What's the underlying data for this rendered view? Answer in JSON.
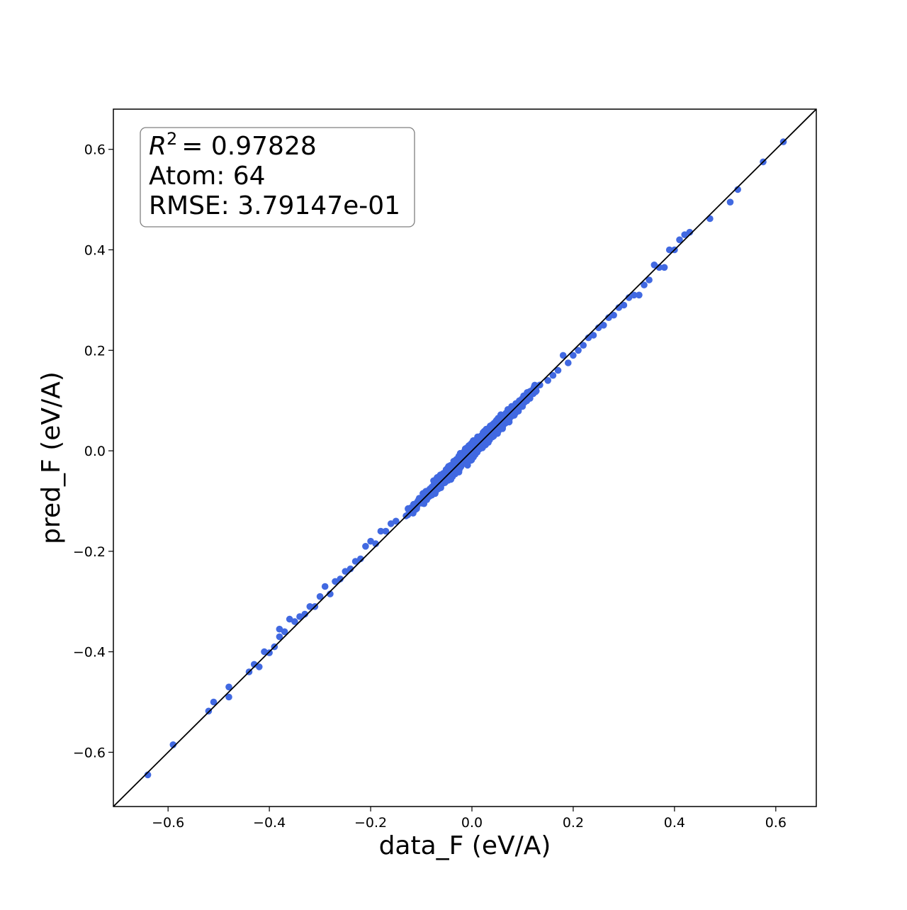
{
  "chart_data": {
    "type": "scatter",
    "title": "",
    "xlabel": "data_F (eV/A)",
    "ylabel": "pred_F (eV/A)",
    "xlim": [
      -0.708,
      0.68
    ],
    "ylim": [
      -0.708,
      0.68
    ],
    "xticks": [
      -0.6,
      -0.4,
      -0.2,
      0.0,
      0.2,
      0.4,
      0.6
    ],
    "yticks": [
      -0.6,
      -0.4,
      -0.2,
      0.0,
      0.2,
      0.4,
      0.6
    ],
    "xtick_labels": [
      "−0.6",
      "−0.4",
      "−0.2",
      "0.0",
      "0.2",
      "0.4",
      "0.6"
    ],
    "ytick_labels": [
      "−0.6",
      "−0.4",
      "−0.2",
      "0.0",
      "0.2",
      "0.4",
      "0.6"
    ],
    "grid": false,
    "marker_color": "#4169e1",
    "reference_line": {
      "type": "identity",
      "color": "#000000"
    },
    "annotation": {
      "r2_symbol": "R",
      "r2_exponent": "2",
      "r2_value": "= 0.97828",
      "atom_line": "Atom: 64",
      "rmse_line": "RMSE: 3.79147e-01",
      "placement": "top-left"
    },
    "series": [
      {
        "points": [
          [
            -0.64,
            -0.645
          ],
          [
            -0.59,
            -0.585
          ],
          [
            -0.52,
            -0.518
          ],
          [
            -0.51,
            -0.5
          ],
          [
            -0.48,
            -0.49
          ],
          [
            -0.48,
            -0.47
          ],
          [
            -0.44,
            -0.44
          ],
          [
            -0.43,
            -0.425
          ],
          [
            -0.42,
            -0.43
          ],
          [
            -0.41,
            -0.4
          ],
          [
            -0.4,
            -0.402
          ],
          [
            -0.39,
            -0.39
          ],
          [
            -0.38,
            -0.37
          ],
          [
            -0.38,
            -0.355
          ],
          [
            -0.37,
            -0.36
          ],
          [
            -0.36,
            -0.335
          ],
          [
            -0.35,
            -0.34
          ],
          [
            -0.34,
            -0.33
          ],
          [
            -0.33,
            -0.325
          ],
          [
            -0.32,
            -0.31
          ],
          [
            -0.31,
            -0.31
          ],
          [
            -0.3,
            -0.29
          ],
          [
            -0.29,
            -0.27
          ],
          [
            -0.28,
            -0.285
          ],
          [
            -0.27,
            -0.26
          ],
          [
            -0.26,
            -0.255
          ],
          [
            -0.25,
            -0.24
          ],
          [
            -0.24,
            -0.235
          ],
          [
            -0.23,
            -0.22
          ],
          [
            -0.22,
            -0.215
          ],
          [
            -0.21,
            -0.19
          ],
          [
            -0.2,
            -0.18
          ],
          [
            -0.19,
            -0.185
          ],
          [
            -0.18,
            -0.16
          ],
          [
            -0.17,
            -0.16
          ],
          [
            -0.16,
            -0.145
          ],
          [
            -0.15,
            -0.14
          ],
          [
            0.15,
            0.14
          ],
          [
            0.16,
            0.15
          ],
          [
            0.17,
            0.16
          ],
          [
            0.18,
            0.19
          ],
          [
            0.19,
            0.175
          ],
          [
            0.2,
            0.19
          ],
          [
            0.21,
            0.2
          ],
          [
            0.22,
            0.21
          ],
          [
            0.23,
            0.225
          ],
          [
            0.24,
            0.23
          ],
          [
            0.25,
            0.245
          ],
          [
            0.26,
            0.25
          ],
          [
            0.27,
            0.265
          ],
          [
            0.28,
            0.27
          ],
          [
            0.29,
            0.285
          ],
          [
            0.3,
            0.29
          ],
          [
            0.31,
            0.305
          ],
          [
            0.32,
            0.31
          ],
          [
            0.33,
            0.31
          ],
          [
            0.34,
            0.33
          ],
          [
            0.35,
            0.34
          ],
          [
            0.36,
            0.37
          ],
          [
            0.37,
            0.365
          ],
          [
            0.38,
            0.365
          ],
          [
            0.39,
            0.4
          ],
          [
            0.4,
            0.4
          ],
          [
            0.41,
            0.42
          ],
          [
            0.42,
            0.43
          ],
          [
            0.43,
            0.435
          ],
          [
            0.47,
            0.462
          ],
          [
            0.51,
            0.495
          ],
          [
            0.525,
            0.52
          ],
          [
            0.575,
            0.575
          ],
          [
            0.615,
            0.615
          ]
        ],
        "dense_band": {
          "x_range": [
            -0.15,
            0.15
          ],
          "center_spread": 0.022,
          "edge_spread": 0.012
        }
      }
    ]
  }
}
